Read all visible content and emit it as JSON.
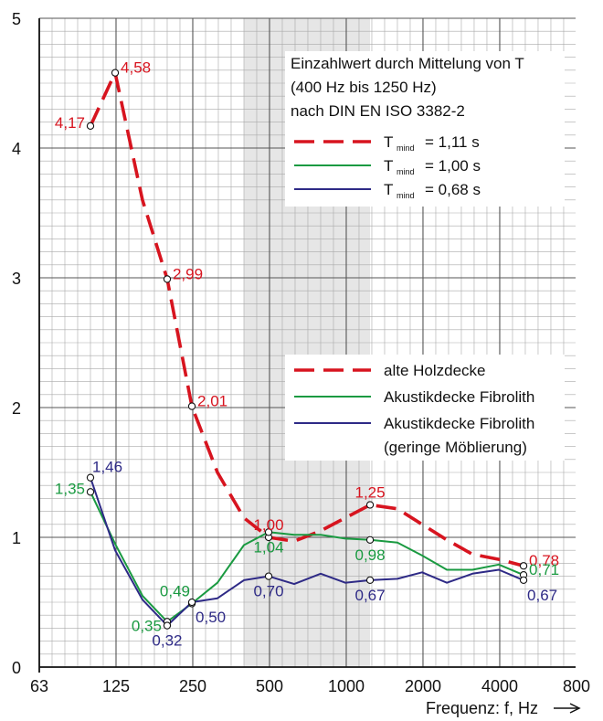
{
  "chart_data": {
    "type": "line",
    "xlabel": "Frequenz: f, Hz",
    "x_scale": "log2",
    "xlim": [
      63,
      8000
    ],
    "ylim": [
      0,
      5
    ],
    "yticks": [
      "0",
      "1",
      "2",
      "3",
      "4",
      "5"
    ],
    "xticks": [
      "63",
      "125",
      "250",
      "500",
      "1000",
      "2000",
      "4000",
      "800"
    ],
    "shaded_band": [
      400,
      1250
    ],
    "grid": true,
    "note_lines": [
      "Einzahlwert durch Mittelung von T",
      "(400 Hz bis 1250 Hz)",
      "nach DIN EN ISO 3382-2"
    ],
    "tmind_legend": [
      {
        "T": "T",
        "sub": "mind",
        "text": "= 1,11 s",
        "color": "#d7141f",
        "dash": true
      },
      {
        "T": "T",
        "sub": "mind",
        "text": "= 1,00 s",
        "color": "#1a9a41",
        "dash": false
      },
      {
        "T": "T",
        "sub": "mind",
        "text": "= 0,68 s",
        "color": "#2e2a86",
        "dash": false
      }
    ],
    "legend": [
      {
        "name": "alte Holzdecke",
        "color": "#d7141f",
        "dash": true
      },
      {
        "name": "Akustikdecke Fibrolith",
        "color": "#1a9a41",
        "dash": false
      },
      {
        "name": "Akustikdecke Fibrolith",
        "name2": "(geringe Möblierung)",
        "color": "#2e2a86",
        "dash": false
      }
    ],
    "series": [
      {
        "color": "#d7141f",
        "dash": true,
        "x": [
          100,
          125,
          160,
          200,
          250,
          315,
          400,
          500,
          630,
          800,
          1000,
          1250,
          1600,
          2000,
          2500,
          3150,
          4000,
          5000
        ],
        "y": [
          4.17,
          4.58,
          3.6,
          2.99,
          2.01,
          1.5,
          1.15,
          1.0,
          0.97,
          1.05,
          1.15,
          1.25,
          1.22,
          1.1,
          0.98,
          0.87,
          0.83,
          0.78
        ]
      },
      {
        "color": "#1a9a41",
        "dash": false,
        "x": [
          100,
          125,
          160,
          200,
          250,
          315,
          400,
          500,
          630,
          800,
          1000,
          1250,
          1600,
          2000,
          2500,
          3150,
          4000,
          5000
        ],
        "y": [
          1.35,
          0.95,
          0.55,
          0.35,
          0.49,
          0.65,
          0.94,
          1.04,
          1.02,
          1.02,
          0.99,
          0.98,
          0.96,
          0.86,
          0.75,
          0.75,
          0.79,
          0.71
        ]
      },
      {
        "color": "#2e2a86",
        "dash": false,
        "x": [
          100,
          125,
          160,
          200,
          250,
          315,
          400,
          500,
          630,
          800,
          1000,
          1250,
          1600,
          2000,
          2500,
          3150,
          4000,
          5000
        ],
        "y": [
          1.46,
          0.9,
          0.52,
          0.32,
          0.5,
          0.53,
          0.67,
          0.7,
          0.64,
          0.72,
          0.65,
          0.67,
          0.68,
          0.73,
          0.65,
          0.72,
          0.75,
          0.67
        ]
      }
    ],
    "data_labels": [
      {
        "text": "4,17",
        "x": 100,
        "y": 4.17,
        "color": "#d7141f",
        "pos": "left",
        "marker": true
      },
      {
        "text": "4,58",
        "x": 125,
        "y": 4.58,
        "color": "#d7141f",
        "pos": "right",
        "marker": true
      },
      {
        "text": "2,99",
        "x": 200,
        "y": 2.99,
        "color": "#d7141f",
        "pos": "right",
        "marker": true
      },
      {
        "text": "2,01",
        "x": 250,
        "y": 2.01,
        "color": "#d7141f",
        "pos": "right",
        "marker": true
      },
      {
        "text": "1,00",
        "x": 500,
        "y": 1.0,
        "color": "#d7141f",
        "pos": "above",
        "marker": true
      },
      {
        "text": "1,25",
        "x": 1250,
        "y": 1.25,
        "color": "#d7141f",
        "pos": "above",
        "marker": true
      },
      {
        "text": "0,78",
        "x": 5000,
        "y": 0.78,
        "color": "#d7141f",
        "pos": "right",
        "marker": true
      },
      {
        "text": "1,35",
        "x": 100,
        "y": 1.35,
        "color": "#1a9a41",
        "pos": "left",
        "marker": true
      },
      {
        "text": "0,35",
        "x": 200,
        "y": 0.35,
        "color": "#1a9a41",
        "pos": "below-left",
        "marker": true
      },
      {
        "text": "0,49",
        "x": 250,
        "y": 0.49,
        "color": "#1a9a41",
        "pos": "above-left",
        "marker": true
      },
      {
        "text": "1,04",
        "x": 500,
        "y": 1.04,
        "color": "#1a9a41",
        "pos": "below",
        "marker": true
      },
      {
        "text": "0,98",
        "x": 1250,
        "y": 0.98,
        "color": "#1a9a41",
        "pos": "below",
        "marker": true
      },
      {
        "text": "0,71",
        "x": 5000,
        "y": 0.71,
        "color": "#1a9a41",
        "pos": "right",
        "marker": true
      },
      {
        "text": "1,46",
        "x": 100,
        "y": 1.46,
        "color": "#2e2a86",
        "pos": "above-right",
        "marker": true
      },
      {
        "text": "0,32",
        "x": 200,
        "y": 0.32,
        "color": "#2e2a86",
        "pos": "below",
        "marker": true
      },
      {
        "text": "0,50",
        "x": 250,
        "y": 0.5,
        "color": "#2e2a86",
        "pos": "below-right",
        "marker": true
      },
      {
        "text": "0,70",
        "x": 500,
        "y": 0.7,
        "color": "#2e2a86",
        "pos": "below",
        "marker": true
      },
      {
        "text": "0,67",
        "x": 1250,
        "y": 0.67,
        "color": "#2e2a86",
        "pos": "below",
        "marker": true
      },
      {
        "text": "0,67",
        "x": 5000,
        "y": 0.67,
        "color": "#2e2a86",
        "pos": "below-right",
        "marker": true
      }
    ]
  }
}
